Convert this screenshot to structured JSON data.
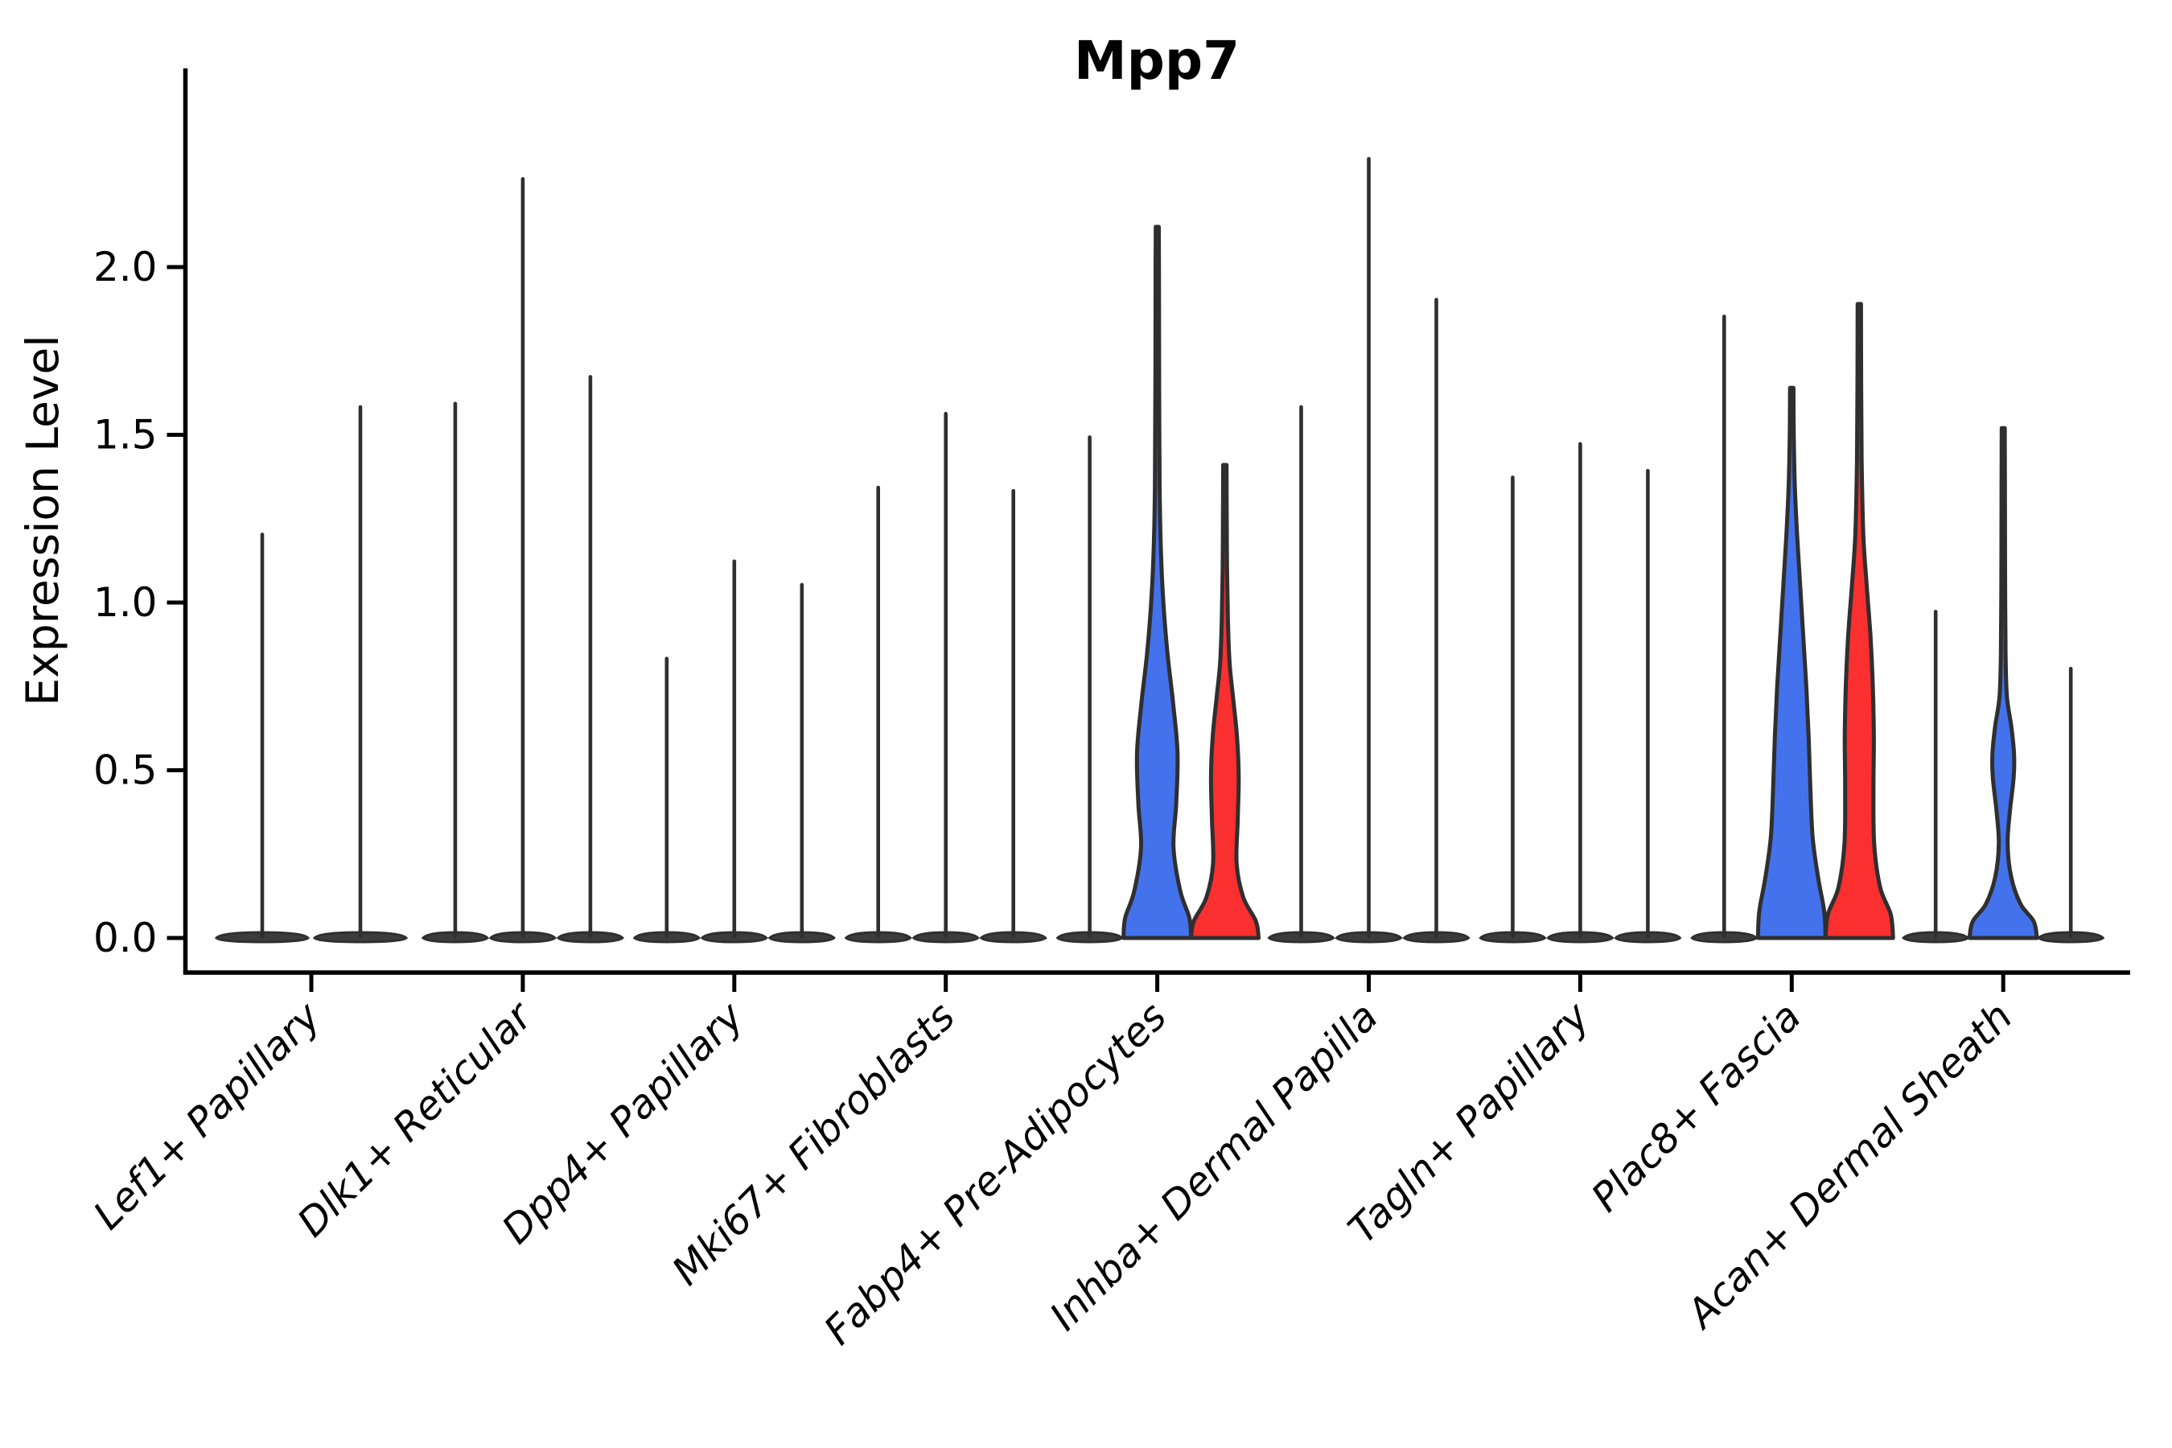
{
  "chart_data": {
    "type": "violin",
    "title": "Mpp7",
    "xlabel": "",
    "ylabel": "Expression Level",
    "grid": false,
    "legend_position": "none",
    "ylim": [
      -0.12,
      2.58
    ],
    "ytick_values": [
      0.0,
      0.5,
      1.0,
      1.5,
      2.0
    ],
    "ytick_labels": [
      "0.0",
      "0.5",
      "1.0",
      "1.5",
      "2.0"
    ],
    "categories": [
      "Lef1+ Papillary",
      "Dlk1+ Reticular",
      "Dpp4+ Papillary",
      "Mki67+ Fibroblasts",
      "Fabp4+ Pre-Adipocytes",
      "Inhba+ Dermal Papilla",
      "Tagln+ Papillary",
      "Plac8+ Fascia",
      "Acan+ Dermal Sheath"
    ],
    "colors": {
      "blue": "#4372ec",
      "red": "#fa2f2f",
      "outline": "#2f2f2f",
      "dark_fill": "#3c3c3c"
    },
    "description": "Violin plot of Mpp7 expression level per fibroblast cluster; most violins collapse to a flat base at 0 with a thin spike to the max expression value; expressed populations are filled blue or red.",
    "groups": [
      {
        "category": "Lef1+ Papillary",
        "violins": [
          {
            "style": "dark-spike",
            "max": 1.21
          },
          {
            "style": "dark-spike",
            "max": 1.59
          }
        ]
      },
      {
        "category": "Dlk1+ Reticular",
        "violins": [
          {
            "style": "dark-spike",
            "max": 1.6
          },
          {
            "style": "dark-spike",
            "max": 2.27
          },
          {
            "style": "dark-spike",
            "max": 1.68
          }
        ]
      },
      {
        "category": "Dpp4+ Papillary",
        "violins": [
          {
            "style": "dark-spike",
            "max": 0.84
          },
          {
            "style": "dark-spike",
            "max": 1.13
          },
          {
            "style": "dark-spike",
            "max": 1.06
          }
        ]
      },
      {
        "category": "Mki67+ Fibroblasts",
        "violins": [
          {
            "style": "dark-spike",
            "max": 1.35
          },
          {
            "style": "dark-spike",
            "max": 1.57
          },
          {
            "style": "dark-spike",
            "max": 1.34
          }
        ]
      },
      {
        "category": "Fabp4+ Pre-Adipocytes",
        "violins": [
          {
            "style": "dark-spike",
            "max": 1.5
          },
          {
            "style": "blue",
            "max": 2.12,
            "profile": [
              [
                0,
                1.0
              ],
              [
                0.06,
                0.95
              ],
              [
                0.14,
                0.68
              ],
              [
                0.27,
                0.48
              ],
              [
                0.4,
                0.56
              ],
              [
                0.55,
                0.6
              ],
              [
                0.7,
                0.47
              ],
              [
                0.85,
                0.3
              ],
              [
                1.0,
                0.18
              ],
              [
                1.15,
                0.11
              ],
              [
                1.35,
                0.07
              ],
              [
                1.7,
                0.055
              ],
              [
                2.0,
                0.05
              ],
              [
                2.12,
                0.045
              ]
            ]
          },
          {
            "style": "red",
            "max": 1.41,
            "profile": [
              [
                0,
                1.0
              ],
              [
                0.05,
                0.92
              ],
              [
                0.12,
                0.55
              ],
              [
                0.22,
                0.35
              ],
              [
                0.35,
                0.38
              ],
              [
                0.48,
                0.41
              ],
              [
                0.6,
                0.36
              ],
              [
                0.72,
                0.24
              ],
              [
                0.82,
                0.14
              ],
              [
                0.95,
                0.09
              ],
              [
                1.1,
                0.065
              ],
              [
                1.28,
                0.055
              ],
              [
                1.41,
                0.05
              ]
            ]
          }
        ]
      },
      {
        "category": "Inhba+ Dermal Papilla",
        "violins": [
          {
            "style": "dark-spike",
            "max": 1.59
          },
          {
            "style": "dark-spike",
            "max": 2.33
          },
          {
            "style": "dark-spike",
            "max": 1.91
          }
        ]
      },
      {
        "category": "Tagln+ Papillary",
        "violins": [
          {
            "style": "dark-spike",
            "max": 1.38
          },
          {
            "style": "dark-spike",
            "max": 1.48
          },
          {
            "style": "dark-spike",
            "max": 1.4
          }
        ]
      },
      {
        "category": "Plac8+ Fascia",
        "violins": [
          {
            "style": "dark-spike",
            "max": 1.86
          },
          {
            "style": "blue",
            "max": 1.64,
            "profile": [
              [
                0,
                1.0
              ],
              [
                0.08,
                0.96
              ],
              [
                0.18,
                0.78
              ],
              [
                0.3,
                0.62
              ],
              [
                0.45,
                0.55
              ],
              [
                0.6,
                0.5
              ],
              [
                0.75,
                0.43
              ],
              [
                0.9,
                0.34
              ],
              [
                1.05,
                0.25
              ],
              [
                1.2,
                0.16
              ],
              [
                1.35,
                0.09
              ],
              [
                1.5,
                0.06
              ],
              [
                1.64,
                0.05
              ]
            ]
          },
          {
            "style": "red",
            "max": 1.89,
            "profile": [
              [
                0,
                1.0
              ],
              [
                0.07,
                0.93
              ],
              [
                0.15,
                0.62
              ],
              [
                0.28,
                0.44
              ],
              [
                0.45,
                0.42
              ],
              [
                0.6,
                0.43
              ],
              [
                0.75,
                0.4
              ],
              [
                0.9,
                0.33
              ],
              [
                1.05,
                0.22
              ],
              [
                1.2,
                0.12
              ],
              [
                1.42,
                0.07
              ],
              [
                1.65,
                0.055
              ],
              [
                1.89,
                0.05
              ]
            ]
          }
        ]
      },
      {
        "category": "Acan+ Dermal Sheath",
        "violins": [
          {
            "style": "dark-spike",
            "max": 0.98
          },
          {
            "style": "blue",
            "max": 1.52,
            "profile": [
              [
                0,
                1.0
              ],
              [
                0.05,
                0.9
              ],
              [
                0.1,
                0.52
              ],
              [
                0.18,
                0.24
              ],
              [
                0.28,
                0.13
              ],
              [
                0.38,
                0.2
              ],
              [
                0.48,
                0.31
              ],
              [
                0.55,
                0.32
              ],
              [
                0.63,
                0.24
              ],
              [
                0.72,
                0.11
              ],
              [
                0.85,
                0.07
              ],
              [
                1.1,
                0.055
              ],
              [
                1.35,
                0.05
              ],
              [
                1.52,
                0.045
              ]
            ]
          },
          {
            "style": "dark-spike",
            "max": 0.81
          }
        ]
      }
    ]
  }
}
